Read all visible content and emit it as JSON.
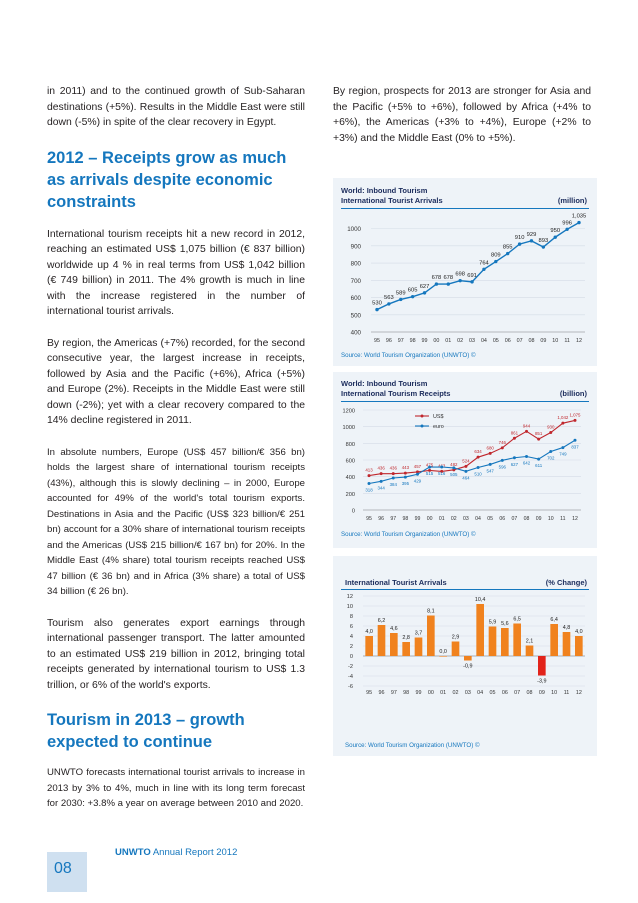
{
  "left": {
    "p1": "in 2011) and to the continued growth of Sub-Saharan destinations (+5%). Results in the Middle East were still down (-5%) in spite of the clear recovery in Egypt.",
    "h1": "2012 – Receipts grow as much as arrivals despite economic constraints",
    "p2": "International tourism receipts hit a new record in 2012, reaching an estimated US$ 1,075 billion (€ 837 billion) worldwide up 4 % in real terms from US$ 1,042 billion (€ 749 billion) in 2011. The 4% growth is much in line with the increase registered in the number of international tourist arrivals.",
    "p3": "By region, the Americas (+7%) recorded, for the second consecutive year, the largest increase in receipts, followed by Asia and the Pacific (+6%), Africa (+5%) and Europe (2%). Receipts in the Middle East were still down (-2%); yet with a clear recovery compared to the 14% decline registered in 2011.",
    "p4": "In absolute numbers, Europe (US$ 457 billion/€ 356 bn) holds the largest share of international tourism receipts (43%), although this is slowly declining – in 2000, Europe accounted for 49% of the world's total tourism exports. Destinations in Asia and the Pacific (US$ 323 billion/€ 251 bn) account for a 30% share of international tourism receipts and the Americas (US$ 215 billion/€ 167 bn) for 20%. In the Middle East (4% share) total tourism receipts reached US$ 47 billion (€ 36 bn) and in Africa (3% share) a total of US$ 34 billion (€ 26 bn).",
    "p5": "Tourism also generates export earnings through international passenger transport. The latter amounted to an estimated US$ 219 billion in 2012, bringing total receipts generated by international tourism to US$ 1.3 trillion, or 6% of the world's exports.",
    "h2": "Tourism in 2013 – growth expected to continue",
    "p6": "UNWTO forecasts international tourist arrivals to increase in 2013 by 3% to 4%, much in line with its long term forecast for 2030: +3.8% a year on average between 2010 and 2020."
  },
  "right": {
    "p1": "By region, prospects for 2013 are stronger for Asia and the Pacific (+5% to +6%), followed by Africa (+4% to +6%), the Americas (+3% to +4%), Europe (+2% to +3%) and the Middle East (0% to +5%)."
  },
  "footer": {
    "brand": "UNWTO",
    "report": "Annual Report 2012",
    "page": "08"
  },
  "colors": {
    "accent": "#1577be",
    "navy": "#1b2c5c",
    "red": "#c0272d",
    "orange": "#f0821e",
    "panel": "#eef3f8"
  },
  "chart_data": [
    {
      "type": "line",
      "title": "World: Inbound Tourism",
      "subtitle": "International Tourist Arrivals",
      "unit": "(million)",
      "source": "Source: World Tourism Organization (UNWTO) ©",
      "categories": [
        "95",
        "96",
        "97",
        "98",
        "99",
        "00",
        "01",
        "02",
        "03",
        "04",
        "05",
        "06",
        "07",
        "08",
        "09",
        "10",
        "11",
        "12"
      ],
      "values": [
        530,
        563,
        589,
        605,
        627,
        678,
        678,
        698,
        691,
        764,
        809,
        855,
        910,
        929,
        893,
        950,
        996,
        1035
      ],
      "value_labels": [
        "530",
        "563",
        "589",
        "605",
        "627",
        "678",
        "678",
        "698",
        "691",
        "764",
        "809",
        "855",
        "910",
        "929",
        "893",
        "950",
        "996",
        "1,035"
      ],
      "yticks": [
        400,
        500,
        600,
        700,
        800,
        900,
        1000
      ],
      "ylim": [
        400,
        1050
      ],
      "color": "#1577be"
    },
    {
      "type": "line",
      "title": "World: Inbound Tourism",
      "subtitle": "International Tourism Receipts",
      "unit": "(billion)",
      "source": "Source: World Tourism Organization (UNWTO) ©",
      "categories": [
        "95",
        "96",
        "97",
        "98",
        "99",
        "00",
        "01",
        "02",
        "03",
        "04",
        "05",
        "06",
        "07",
        "08",
        "09",
        "10",
        "11",
        "12"
      ],
      "tick_labels": [
        "95",
        "96",
        "97",
        "98",
        "99",
        "00",
        "01",
        "02",
        "03",
        "04",
        "05",
        "06",
        "07",
        "08",
        "09",
        "10",
        "11",
        "12"
      ],
      "yticks": [
        0,
        200,
        400,
        600,
        800,
        1000,
        1200
      ],
      "ylim": [
        0,
        1200
      ],
      "series": [
        {
          "name": "US$",
          "color": "#c0272d",
          "values": [
            413,
            436,
            436,
            443,
            457,
            475,
            463,
            482,
            524,
            634,
            680,
            746,
            861,
            944,
            851,
            930,
            1042,
            1075
          ],
          "labels": [
            "413",
            "436",
            "436",
            "443",
            "457",
            "475",
            "463",
            "482",
            "524",
            "634",
            "680",
            "746",
            "861",
            "944",
            "851",
            "930",
            "1,042",
            "1,075"
          ]
        },
        {
          "name": "euro",
          "color": "#1577be",
          "values": [
            318,
            344,
            384,
            395,
            429,
            515,
            516,
            505,
            464,
            510,
            547,
            596,
            627,
            642,
            611,
            702,
            749,
            837
          ],
          "labels": [
            "318",
            "344",
            "384",
            "395",
            "429",
            "515",
            "516",
            "505",
            "464",
            "510",
            "547",
            "596",
            "627",
            "642",
            "611",
            "702",
            "749",
            "837"
          ]
        }
      ]
    },
    {
      "type": "bar",
      "title": "International Tourist Arrivals",
      "unit": "(% Change)",
      "source": "Source: World Tourism Organization (UNWTO) ©",
      "categories": [
        "95",
        "96",
        "97",
        "98",
        "99",
        "00",
        "01",
        "02",
        "03",
        "04",
        "05",
        "06",
        "07",
        "08",
        "09",
        "10",
        "11",
        "12"
      ],
      "values": [
        4.0,
        6.2,
        4.6,
        2.8,
        3.7,
        8.1,
        0.0,
        2.9,
        -0.9,
        10.4,
        5.9,
        5.6,
        6.5,
        2.1,
        -3.9,
        6.4,
        4.8,
        4.0
      ],
      "value_labels": [
        "4,0",
        "6,2",
        "4,6",
        "2,8",
        "3,7",
        "8,1",
        "0,0",
        "2,9",
        "-0,9",
        "10,4",
        "5,9",
        "5,6",
        "6,5",
        "2,1",
        "-3,9",
        "6,4",
        "4,8",
        "4,0"
      ],
      "yticks": [
        -6,
        -4,
        -2,
        0,
        2,
        4,
        6,
        8,
        10,
        12
      ],
      "ylim": [
        -6,
        12
      ],
      "colors": [
        "#f0821e",
        "#f0821e",
        "#f0821e",
        "#f0821e",
        "#f0821e",
        "#f0821e",
        "#f0821e",
        "#f0821e",
        "#f0821e",
        "#f0821e",
        "#f0821e",
        "#f0821e",
        "#f0821e",
        "#f0821e",
        "#e2231a",
        "#f0821e",
        "#f0821e",
        "#f0821e"
      ]
    }
  ]
}
